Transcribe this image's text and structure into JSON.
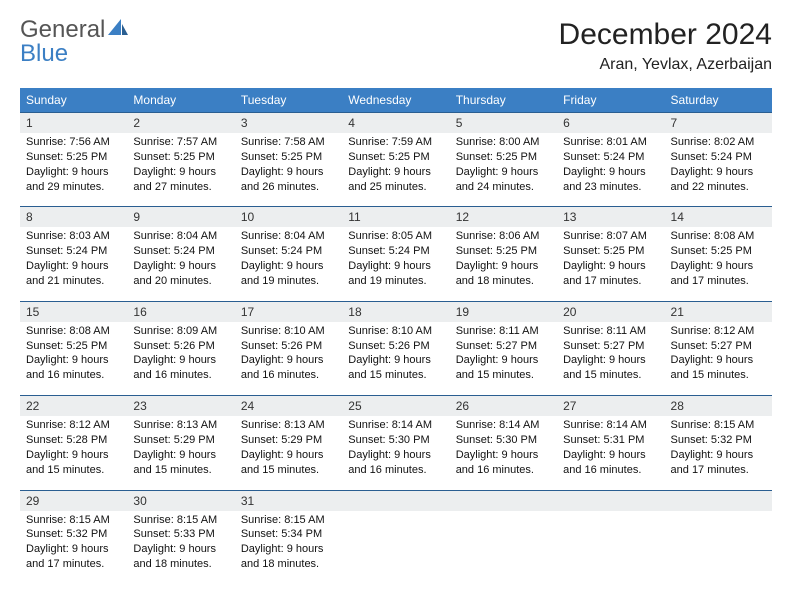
{
  "logo": {
    "text1": "General",
    "text2": "Blue"
  },
  "title": "December 2024",
  "location": "Aran, Yevlax, Azerbaijan",
  "colors": {
    "header_bg": "#3b7fc4",
    "header_fg": "#ffffff",
    "daynum_bg": "#eceeef",
    "rule": "#2a5e91"
  },
  "day_names": [
    "Sunday",
    "Monday",
    "Tuesday",
    "Wednesday",
    "Thursday",
    "Friday",
    "Saturday"
  ],
  "weeks": [
    [
      {
        "n": "1",
        "sr": "7:56 AM",
        "ss": "5:25 PM",
        "dl": "9 hours and 29 minutes."
      },
      {
        "n": "2",
        "sr": "7:57 AM",
        "ss": "5:25 PM",
        "dl": "9 hours and 27 minutes."
      },
      {
        "n": "3",
        "sr": "7:58 AM",
        "ss": "5:25 PM",
        "dl": "9 hours and 26 minutes."
      },
      {
        "n": "4",
        "sr": "7:59 AM",
        "ss": "5:25 PM",
        "dl": "9 hours and 25 minutes."
      },
      {
        "n": "5",
        "sr": "8:00 AM",
        "ss": "5:25 PM",
        "dl": "9 hours and 24 minutes."
      },
      {
        "n": "6",
        "sr": "8:01 AM",
        "ss": "5:24 PM",
        "dl": "9 hours and 23 minutes."
      },
      {
        "n": "7",
        "sr": "8:02 AM",
        "ss": "5:24 PM",
        "dl": "9 hours and 22 minutes."
      }
    ],
    [
      {
        "n": "8",
        "sr": "8:03 AM",
        "ss": "5:24 PM",
        "dl": "9 hours and 21 minutes."
      },
      {
        "n": "9",
        "sr": "8:04 AM",
        "ss": "5:24 PM",
        "dl": "9 hours and 20 minutes."
      },
      {
        "n": "10",
        "sr": "8:04 AM",
        "ss": "5:24 PM",
        "dl": "9 hours and 19 minutes."
      },
      {
        "n": "11",
        "sr": "8:05 AM",
        "ss": "5:24 PM",
        "dl": "9 hours and 19 minutes."
      },
      {
        "n": "12",
        "sr": "8:06 AM",
        "ss": "5:25 PM",
        "dl": "9 hours and 18 minutes."
      },
      {
        "n": "13",
        "sr": "8:07 AM",
        "ss": "5:25 PM",
        "dl": "9 hours and 17 minutes."
      },
      {
        "n": "14",
        "sr": "8:08 AM",
        "ss": "5:25 PM",
        "dl": "9 hours and 17 minutes."
      }
    ],
    [
      {
        "n": "15",
        "sr": "8:08 AM",
        "ss": "5:25 PM",
        "dl": "9 hours and 16 minutes."
      },
      {
        "n": "16",
        "sr": "8:09 AM",
        "ss": "5:26 PM",
        "dl": "9 hours and 16 minutes."
      },
      {
        "n": "17",
        "sr": "8:10 AM",
        "ss": "5:26 PM",
        "dl": "9 hours and 16 minutes."
      },
      {
        "n": "18",
        "sr": "8:10 AM",
        "ss": "5:26 PM",
        "dl": "9 hours and 15 minutes."
      },
      {
        "n": "19",
        "sr": "8:11 AM",
        "ss": "5:27 PM",
        "dl": "9 hours and 15 minutes."
      },
      {
        "n": "20",
        "sr": "8:11 AM",
        "ss": "5:27 PM",
        "dl": "9 hours and 15 minutes."
      },
      {
        "n": "21",
        "sr": "8:12 AM",
        "ss": "5:27 PM",
        "dl": "9 hours and 15 minutes."
      }
    ],
    [
      {
        "n": "22",
        "sr": "8:12 AM",
        "ss": "5:28 PM",
        "dl": "9 hours and 15 minutes."
      },
      {
        "n": "23",
        "sr": "8:13 AM",
        "ss": "5:29 PM",
        "dl": "9 hours and 15 minutes."
      },
      {
        "n": "24",
        "sr": "8:13 AM",
        "ss": "5:29 PM",
        "dl": "9 hours and 15 minutes."
      },
      {
        "n": "25",
        "sr": "8:14 AM",
        "ss": "5:30 PM",
        "dl": "9 hours and 16 minutes."
      },
      {
        "n": "26",
        "sr": "8:14 AM",
        "ss": "5:30 PM",
        "dl": "9 hours and 16 minutes."
      },
      {
        "n": "27",
        "sr": "8:14 AM",
        "ss": "5:31 PM",
        "dl": "9 hours and 16 minutes."
      },
      {
        "n": "28",
        "sr": "8:15 AM",
        "ss": "5:32 PM",
        "dl": "9 hours and 17 minutes."
      }
    ],
    [
      {
        "n": "29",
        "sr": "8:15 AM",
        "ss": "5:32 PM",
        "dl": "9 hours and 17 minutes."
      },
      {
        "n": "30",
        "sr": "8:15 AM",
        "ss": "5:33 PM",
        "dl": "9 hours and 18 minutes."
      },
      {
        "n": "31",
        "sr": "8:15 AM",
        "ss": "5:34 PM",
        "dl": "9 hours and 18 minutes."
      },
      null,
      null,
      null,
      null
    ]
  ],
  "labels": {
    "sunrise": "Sunrise:",
    "sunset": "Sunset:",
    "daylight": "Daylight:"
  }
}
